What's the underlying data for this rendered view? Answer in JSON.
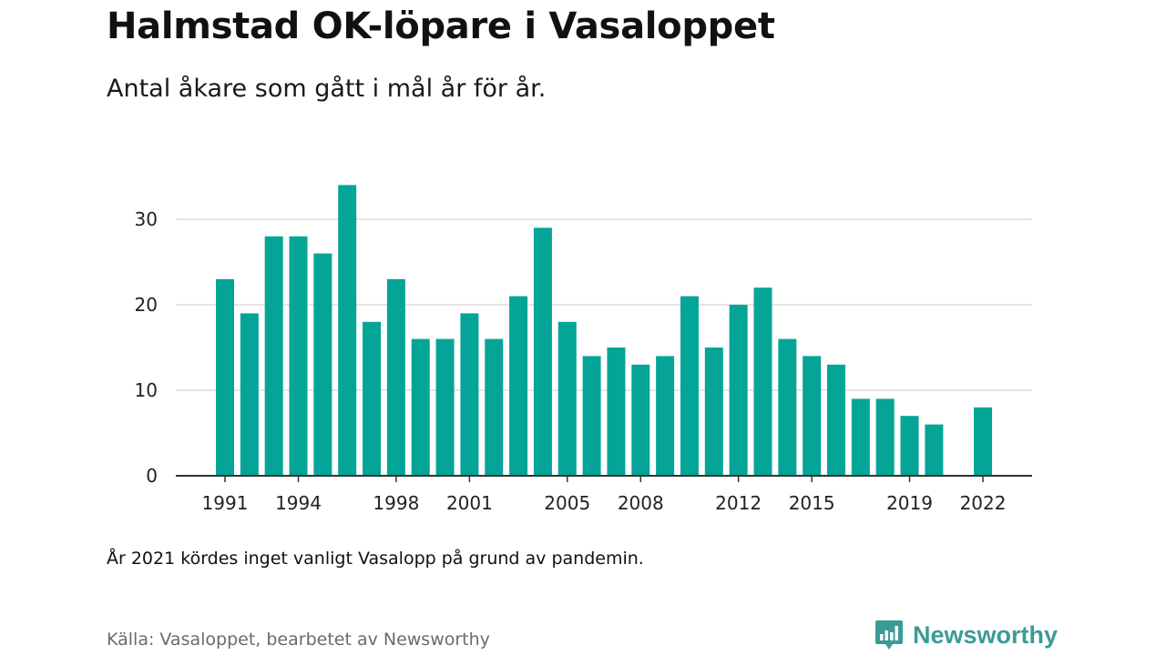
{
  "header": {
    "title": "Halmstad OK-löpare i Vasaloppet",
    "subtitle": "Antal åkare som gått i mål år för år."
  },
  "footer": {
    "note": "År 2021 kördes inget vanligt Vasalopp på grund av pandemin.",
    "source": "Källa: Vasaloppet, bearbetet av Newsworthy",
    "brand": "Newsworthy"
  },
  "colors": {
    "bar": "#04a597",
    "grid": "#dddddd",
    "axis": "#333333",
    "brand": "#3a9b96"
  },
  "chart_data": {
    "type": "bar",
    "title": "Halmstad OK-löpare i Vasaloppet",
    "subtitle": "Antal åkare som gått i mål år för år.",
    "xlabel": "",
    "ylabel": "",
    "ylim": [
      0,
      35
    ],
    "yticks": [
      0,
      10,
      20,
      30
    ],
    "xticks": [
      "1991",
      "1994",
      "1998",
      "2001",
      "2005",
      "2008",
      "2012",
      "2015",
      "2019",
      "2022"
    ],
    "grid": true,
    "categories": [
      "1991",
      "1992",
      "1993",
      "1994",
      "1995",
      "1996",
      "1997",
      "1998",
      "1999",
      "2000",
      "2001",
      "2002",
      "2003",
      "2004",
      "2005",
      "2006",
      "2007",
      "2008",
      "2009",
      "2010",
      "2011",
      "2012",
      "2013",
      "2014",
      "2015",
      "2016",
      "2017",
      "2018",
      "2019",
      "2020",
      "2021",
      "2022"
    ],
    "values": [
      23,
      19,
      28,
      28,
      26,
      34,
      18,
      23,
      16,
      16,
      19,
      16,
      21,
      29,
      18,
      14,
      15,
      13,
      14,
      21,
      15,
      20,
      22,
      16,
      14,
      13,
      9,
      9,
      7,
      6,
      null,
      8
    ]
  }
}
